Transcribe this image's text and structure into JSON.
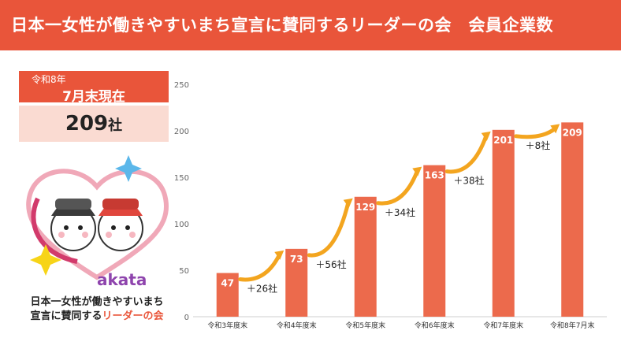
{
  "header": {
    "title": "日本一女性が働きやすいまち宣言に賛同するリーダーの会　会員企業数"
  },
  "summary": {
    "date_line1": "令和8年",
    "date_line2": "7月末現在",
    "count_value": "209",
    "count_unit": "社"
  },
  "logo": {
    "text_line1": "日本一女性が働きやすいまち",
    "text_line2a": "宣言に賛同する",
    "text_line2b": "リーダーの会",
    "sakata": "akata"
  },
  "colors": {
    "brand": "#e9553a",
    "bar": "#ec6a4c",
    "arrow": "#f3a51f",
    "light": "#fadbd2"
  },
  "chart_data": {
    "type": "bar",
    "categories": [
      "令和3年度末",
      "令和4年度末",
      "令和5年度末",
      "令和6年度末",
      "令和7年度末",
      "令和8年7月末"
    ],
    "values": [
      47,
      73,
      129,
      163,
      201,
      209
    ],
    "ylim": [
      0,
      250
    ],
    "yticks": [
      0,
      50,
      100,
      150,
      200,
      250
    ],
    "increments": [
      "＋26社",
      "＋56社",
      "＋34社",
      "＋38社",
      "＋8社"
    ],
    "grid": false
  }
}
